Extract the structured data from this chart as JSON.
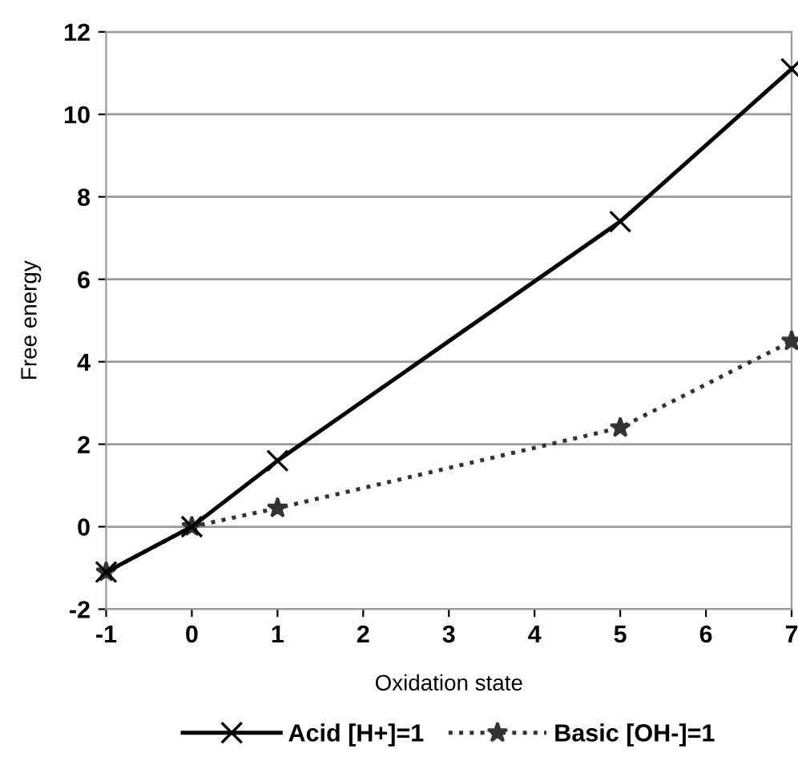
{
  "chart_data": {
    "type": "line",
    "xlabel": "Oxidation state",
    "ylabel": "Free energy",
    "x": [
      -1,
      0,
      1,
      5,
      7
    ],
    "series": [
      {
        "name": "Acid [H+]=1",
        "color": "#000000",
        "values": [
          -1.1,
          0,
          1.6,
          7.4,
          11.1
        ],
        "marker": "cross",
        "line_style": "solid"
      },
      {
        "name": "Basic [OH-]=1",
        "color": "#333333",
        "values": [
          -1.1,
          0,
          0.45,
          2.4,
          4.5
        ],
        "marker": "star",
        "line_style": "dotted"
      }
    ],
    "xlim": [
      -1,
      7
    ],
    "xticks": [
      -1,
      0,
      1,
      2,
      3,
      4,
      5,
      6,
      7
    ],
    "ylim": [
      -2,
      12
    ],
    "yticks": [
      -2,
      0,
      2,
      4,
      6,
      8,
      10,
      12
    ],
    "grid": "y",
    "legend": "bottom"
  }
}
